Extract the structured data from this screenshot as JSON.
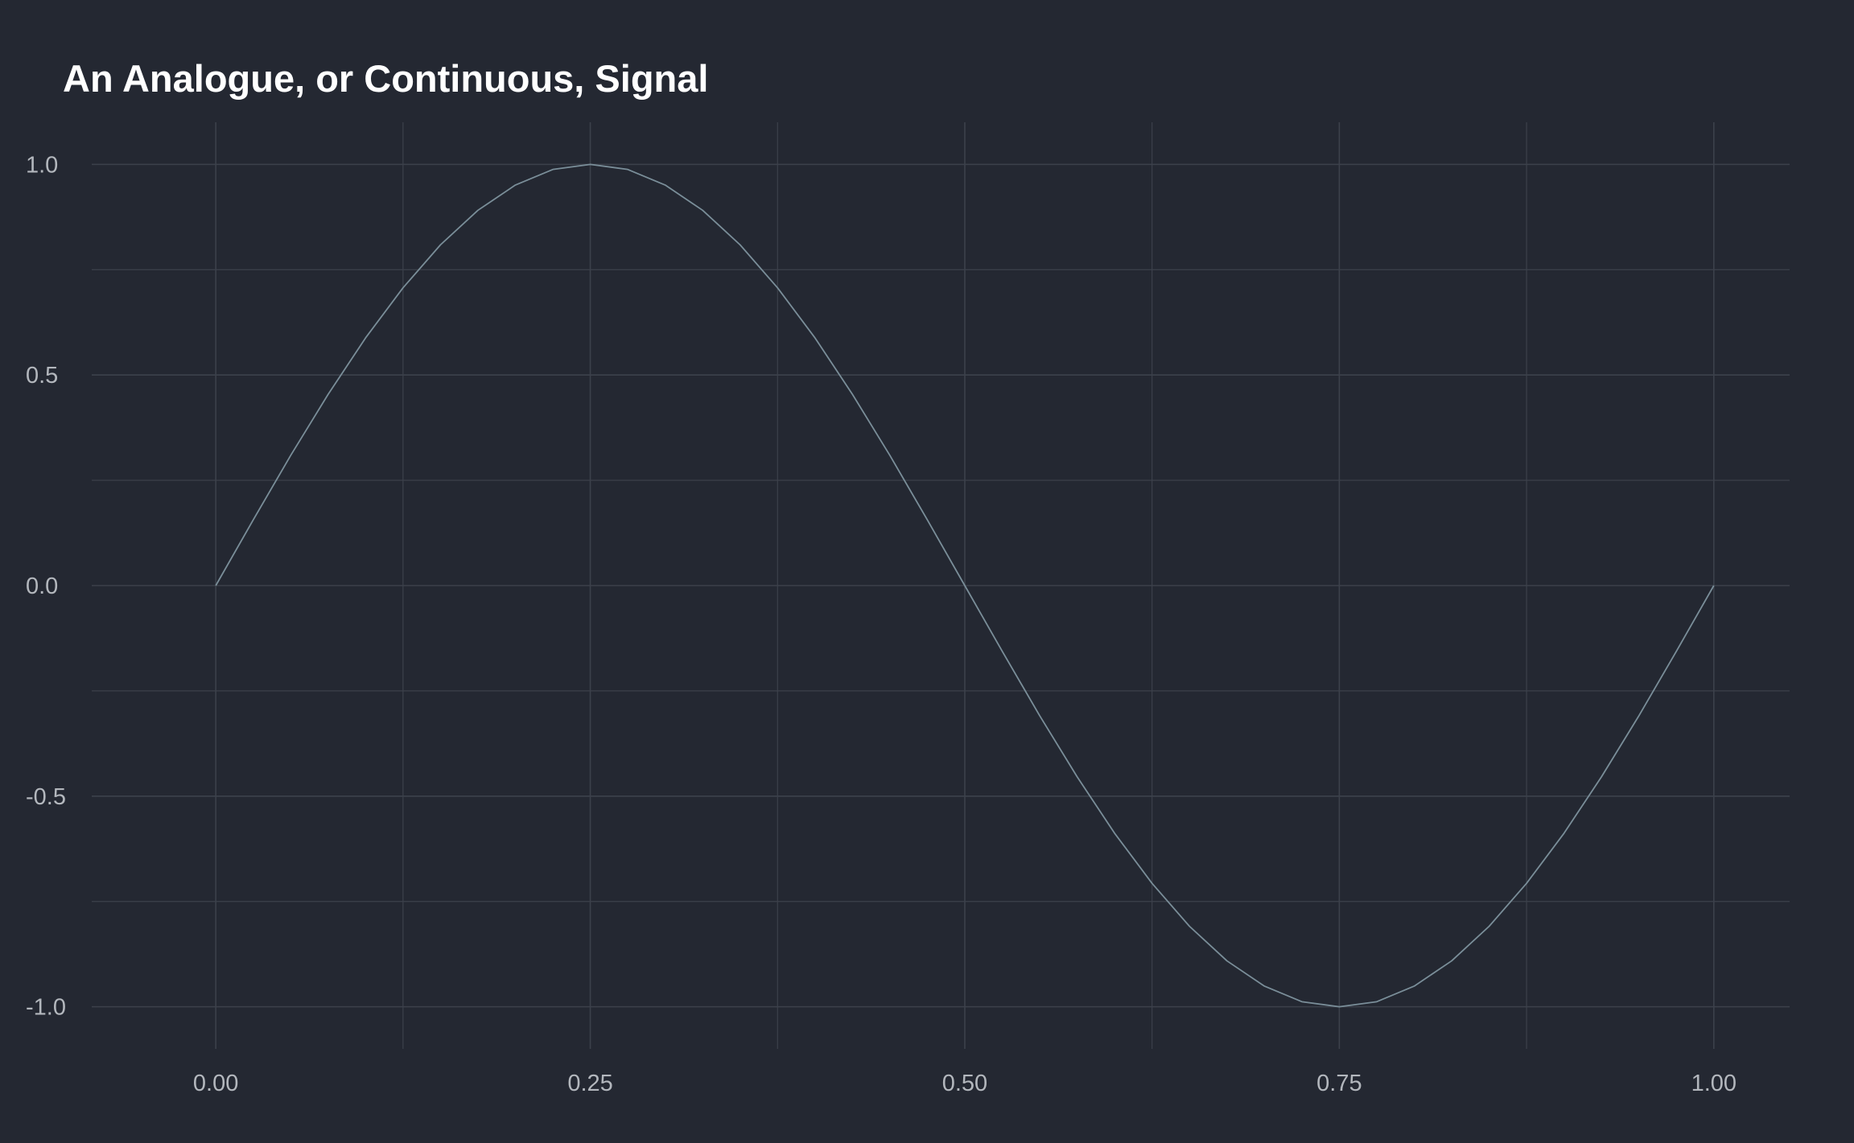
{
  "chart_data": {
    "type": "line",
    "title": "An Analogue, or Continuous, Signal",
    "xlabel": "",
    "ylabel": "",
    "xlim": [
      -0.0828,
      1.0506
    ],
    "ylim": [
      -1.1,
      1.1
    ],
    "x_ticks": [
      0,
      0.25,
      0.5,
      0.75,
      1
    ],
    "x_tick_labels": [
      "0.00",
      "0.25",
      "0.50",
      "0.75",
      "1.00"
    ],
    "x_minor_ticks": [
      0.125,
      0.375,
      0.625,
      0.875
    ],
    "y_ticks": [
      -1,
      -0.5,
      0,
      0.5,
      1
    ],
    "y_tick_labels": [
      "-1.0",
      "-0.5",
      "0.0",
      "0.5",
      "1.0"
    ],
    "y_minor_ticks": [
      -0.75,
      -0.25,
      0.25,
      0.75
    ],
    "grid": true,
    "legend": "none",
    "series": [
      {
        "color": "#7a8e99",
        "x": [
          0,
          0.025,
          0.05,
          0.075,
          0.1,
          0.125,
          0.15,
          0.175,
          0.2,
          0.225,
          0.25,
          0.275,
          0.3,
          0.325,
          0.35,
          0.375,
          0.4,
          0.425,
          0.45,
          0.475,
          0.5,
          0.525,
          0.55,
          0.575,
          0.6,
          0.625,
          0.65,
          0.675,
          0.7,
          0.725,
          0.75,
          0.775,
          0.8,
          0.825,
          0.85,
          0.875,
          0.9,
          0.925,
          0.95,
          0.975,
          1
        ],
        "y": [
          0,
          0.156,
          0.309,
          0.454,
          0.588,
          0.707,
          0.809,
          0.891,
          0.951,
          0.988,
          1,
          0.988,
          0.951,
          0.891,
          0.809,
          0.707,
          0.588,
          0.454,
          0.309,
          0.156,
          0,
          -0.156,
          -0.309,
          -0.454,
          -0.588,
          -0.707,
          -0.809,
          -0.891,
          -0.951,
          -0.988,
          -1,
          -0.988,
          -0.951,
          -0.891,
          -0.809,
          -0.707,
          -0.588,
          -0.454,
          -0.309,
          -0.156,
          0
        ]
      }
    ],
    "colors": {
      "background": "#242832",
      "grid": "#3c414b",
      "line": "#7a8e99",
      "title": "#ffffff",
      "tick_label": "#b3b7bd"
    }
  }
}
